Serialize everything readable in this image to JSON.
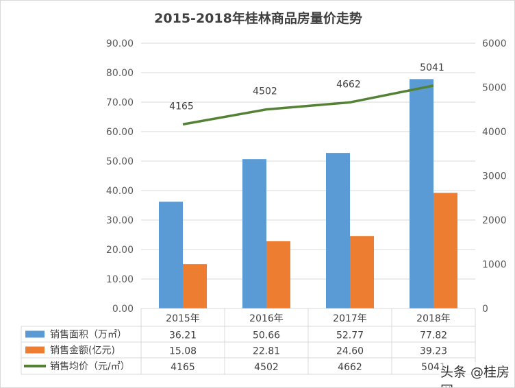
{
  "chart_data": {
    "type": "bar",
    "title": "2015-2018年桂林商品房量价走势",
    "categories": [
      "2015年",
      "2016年",
      "2017年",
      "2018年"
    ],
    "y_left": {
      "min": 0,
      "max": 90,
      "step": 10,
      "ticks": [
        "0.00",
        "10.00",
        "20.00",
        "30.00",
        "40.00",
        "50.00",
        "60.00",
        "70.00",
        "80.00",
        "90.00"
      ]
    },
    "y_right": {
      "min": 0,
      "max": 6000,
      "step": 1000,
      "ticks": [
        "0",
        "1000",
        "2000",
        "3000",
        "4000",
        "5000",
        "6000"
      ]
    },
    "grid": true,
    "legend": "data-table",
    "series": [
      {
        "name": "销售面积（万㎡）",
        "type": "bar",
        "axis": "left",
        "color": "#5b9bd5",
        "values": [
          36.21,
          50.66,
          52.77,
          77.82
        ],
        "labels": [
          "36.21",
          "50.66",
          "52.77",
          "77.82"
        ]
      },
      {
        "name": "销售金额(亿元)",
        "type": "bar",
        "axis": "left",
        "color": "#ed7d31",
        "values": [
          15.08,
          22.81,
          24.6,
          39.23
        ],
        "labels": [
          "15.08",
          "22.81",
          "24.60",
          "39.23"
        ]
      },
      {
        "name": "销售均价（元/㎡）",
        "type": "line",
        "axis": "right",
        "color": "#548235",
        "values": [
          4165,
          4502,
          4662,
          5041
        ],
        "labels": [
          "4165",
          "4502",
          "4662",
          "5041"
        ]
      }
    ]
  },
  "watermark": "头条 @桂房网"
}
